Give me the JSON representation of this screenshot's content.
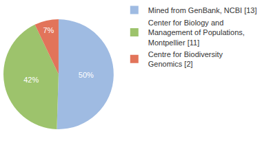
{
  "chart_data": {
    "type": "pie",
    "categories": [
      "Mined from GenBank, NCBI [13]",
      "Center for Biology and Management of Populations, Montpellier [11]",
      "Centre for Biodiversity Genomics [2]"
    ],
    "values": [
      50,
      42,
      7
    ],
    "value_labels": [
      "50%",
      "42%",
      "7%"
    ],
    "colors": [
      "#9fbbe2",
      "#9dc36c",
      "#e2745a"
    ],
    "data_labels": true,
    "legend": "top right"
  }
}
